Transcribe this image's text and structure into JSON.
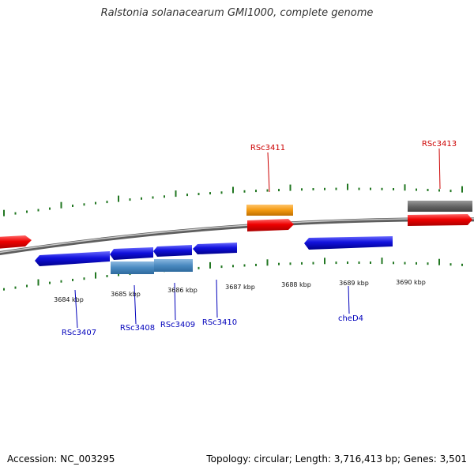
{
  "title": "Ralstonia solanacearum GMI1000, complete genome",
  "footer": {
    "accession": "Accession: NC_003295",
    "summary": "Topology: circular; Length: 3,716,413 bp; Genes: 3,501"
  },
  "colors": {
    "backbone": "#7a7a7a",
    "tick": "#227722",
    "forward_gene": "#ee0000",
    "reverse_gene": "#1111dd",
    "rna_feature": "#f39a11",
    "pseudo_feature": "#666666",
    "reverse_track": "#4a8ac0",
    "label_forward": "#cc0000",
    "label_reverse": "#0000bb"
  },
  "scale": {
    "unit": "kbp",
    "labels": [
      "3684 kbp",
      "3685 kbp",
      "3686 kbp",
      "3687 kbp",
      "3688 kbp",
      "3689 kbp",
      "3690 kbp"
    ]
  },
  "gene_labels_forward": [
    "RSc3411",
    "RSc3413"
  ],
  "gene_labels_reverse": [
    "RSc3407",
    "RSc3408",
    "RSc3409",
    "RSc3410",
    "cheD4"
  ]
}
